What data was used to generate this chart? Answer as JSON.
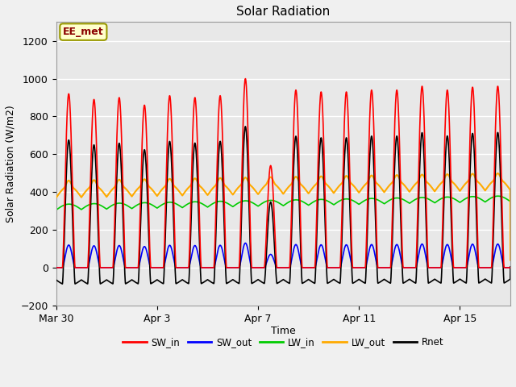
{
  "title": "Solar Radiation",
  "xlabel": "Time",
  "ylabel": "Solar Radiation (W/m2)",
  "ylim": [
    -200,
    1300
  ],
  "yticks": [
    -200,
    0,
    200,
    400,
    600,
    800,
    1000,
    1200
  ],
  "xtick_labels": [
    "Mar 30",
    "Apr 3",
    "Apr 7",
    "Apr 11",
    "Apr 15"
  ],
  "xtick_positions": [
    0,
    4,
    8,
    12,
    16
  ],
  "fig_bg_color": "#f0f0f0",
  "plot_bg_color": "#f0f0f0",
  "inner_bg_color": "#e8e8e8",
  "grid_color": "#ffffff",
  "legend_label": "EE_met",
  "series": {
    "SW_in": {
      "color": "#ff0000",
      "lw": 1.2
    },
    "SW_out": {
      "color": "#0000ff",
      "lw": 1.2
    },
    "LW_in": {
      "color": "#00cc00",
      "lw": 1.2
    },
    "LW_out": {
      "color": "#ffaa00",
      "lw": 1.5
    },
    "Rnet": {
      "color": "#000000",
      "lw": 1.2
    }
  },
  "n_days": 18,
  "pts_per_day": 144,
  "peak_heights": [
    920,
    890,
    900,
    860,
    910,
    900,
    910,
    1000,
    540,
    940,
    930,
    930,
    940,
    940,
    960,
    940,
    955,
    960
  ],
  "lw_in_base": 310,
  "lw_out_base": 375,
  "night_rnet": -80
}
